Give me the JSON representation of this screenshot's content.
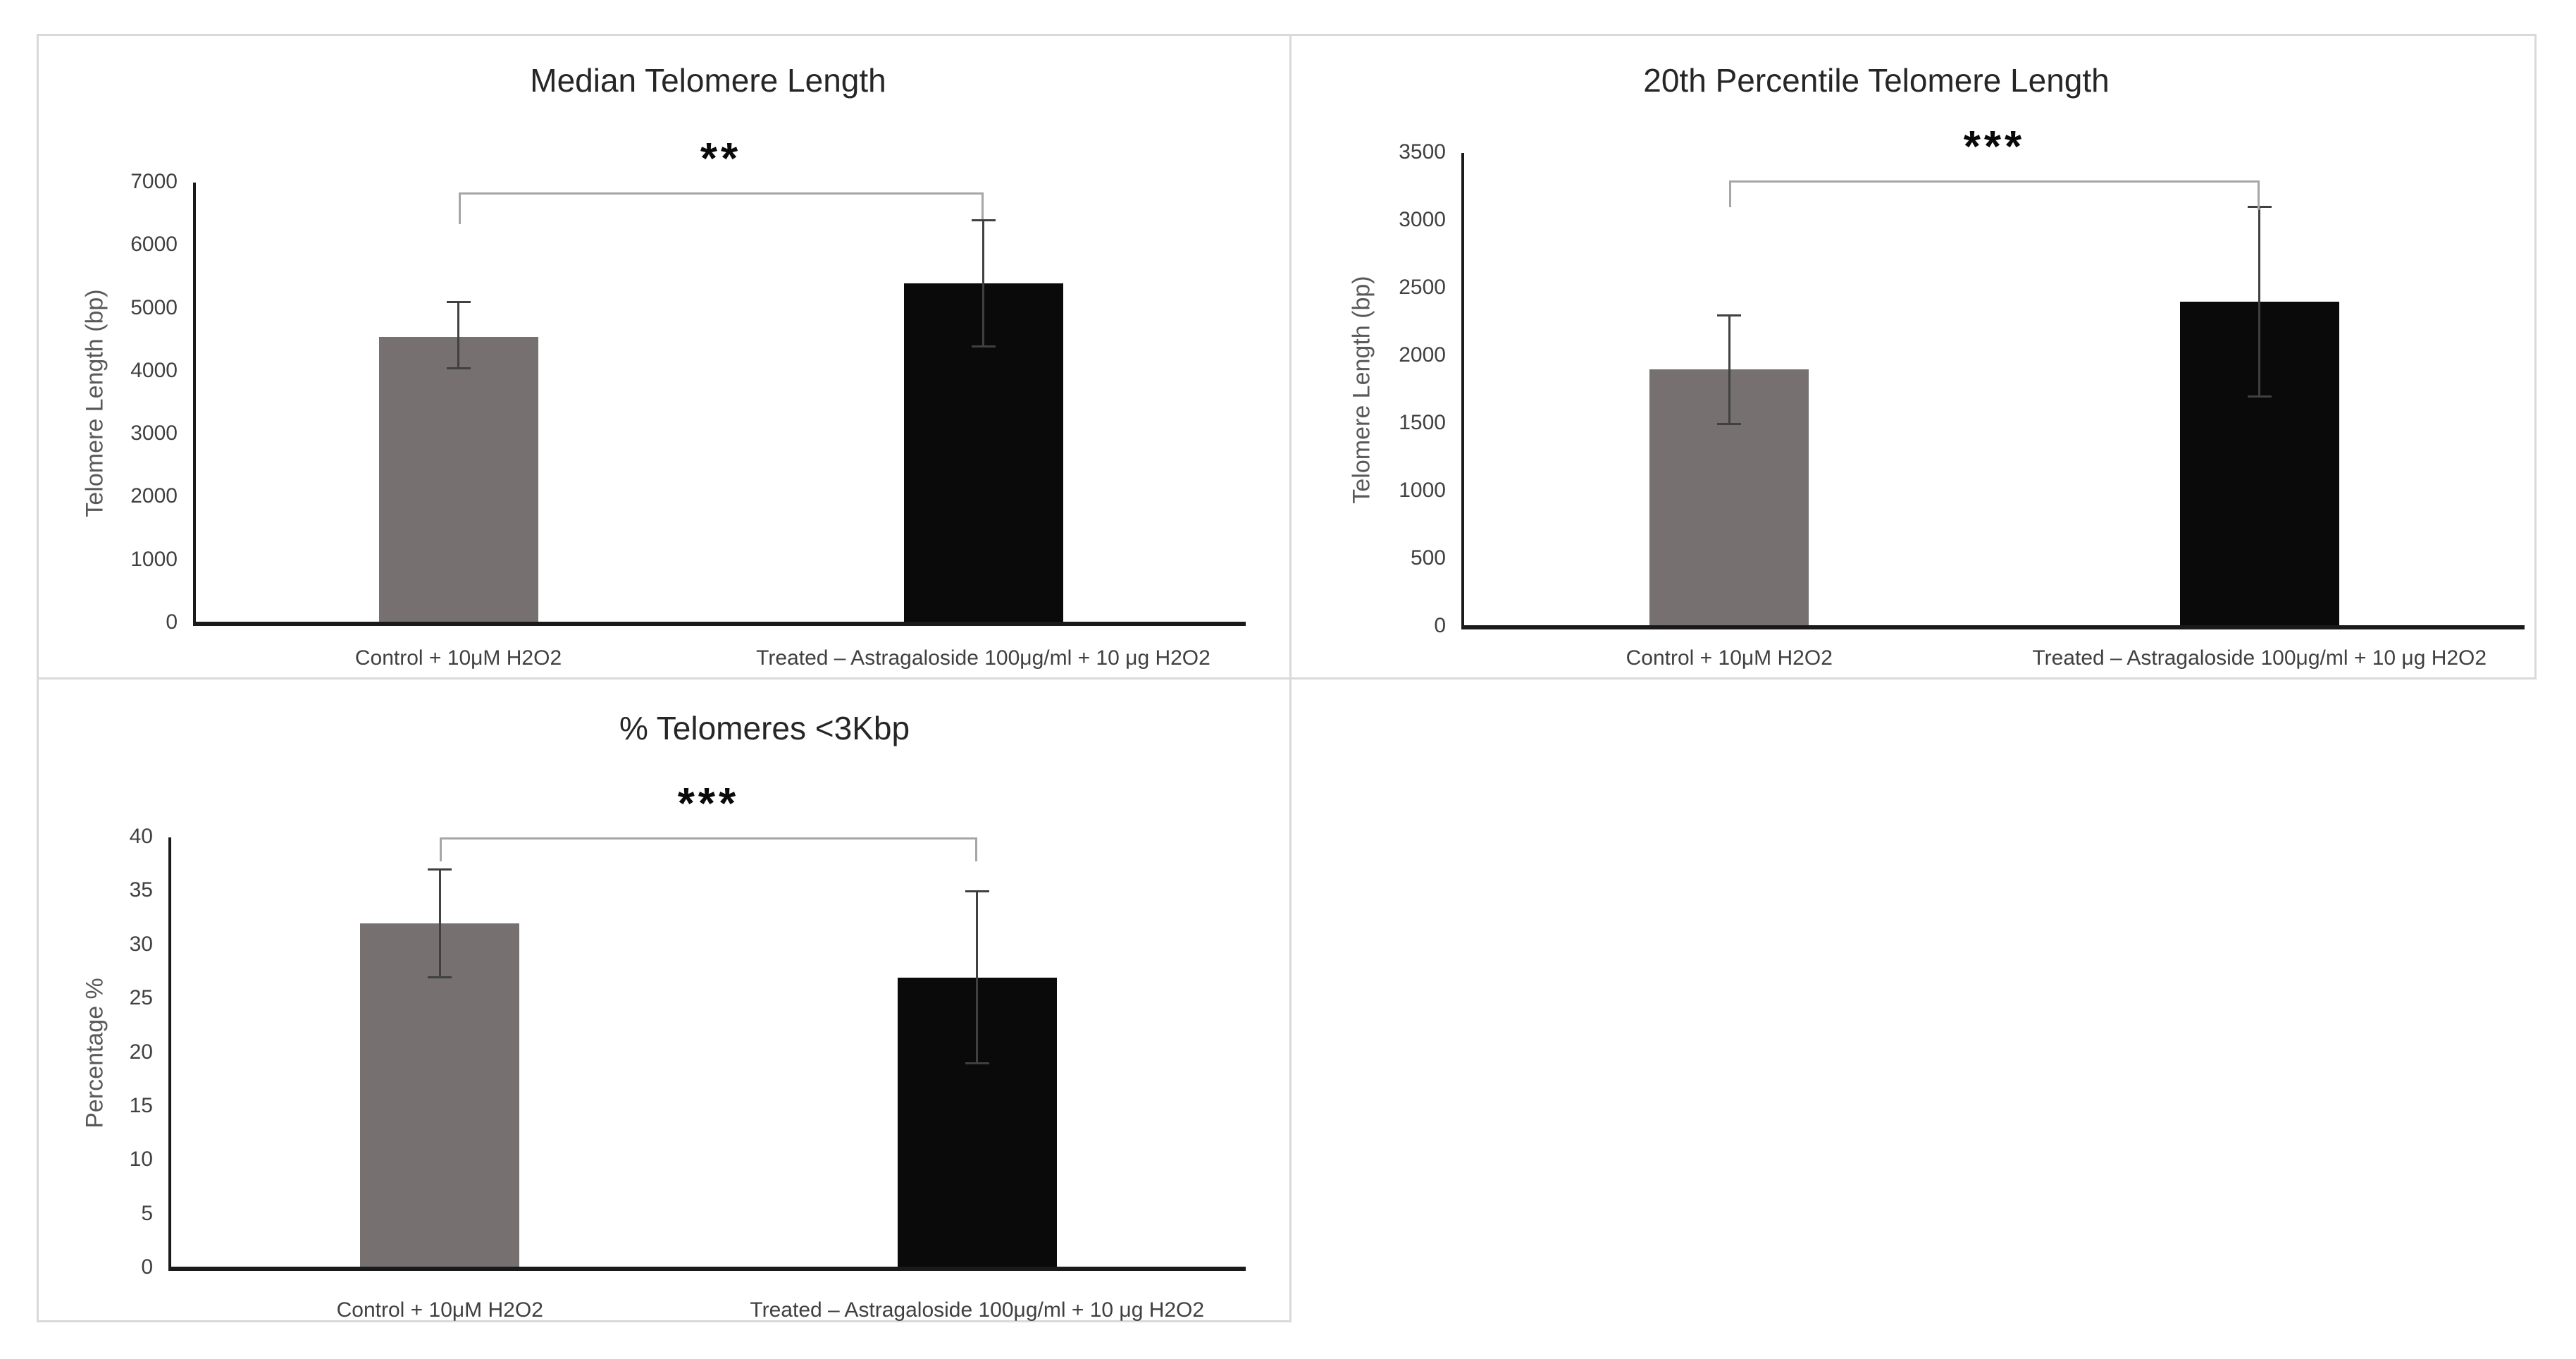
{
  "colors": {
    "bar_gray": "#767170",
    "bar_black": "#0a0a0a",
    "error_bar": "#404040",
    "bracket": "#a6a6a6",
    "axis_line": "#1a1a1a",
    "tick_label": "#404040",
    "axis_title": "#595959",
    "chart_title": "#262626",
    "panel_border": "#d9d9d9",
    "background": "#ffffff"
  },
  "chart_data": [
    {
      "type": "bar",
      "title": "Median Telomere Length",
      "ylabel": "Telomere Length (bp)",
      "xlabel": "",
      "categories": [
        "Control + 10μM H2O2",
        "Treated – Astragaloside 100μg/ml + 10 μg H2O2"
      ],
      "values": [
        4550,
        5400
      ],
      "error_low": [
        4050,
        4400
      ],
      "error_high": [
        5100,
        6400
      ],
      "bar_colors": [
        "#767170",
        "#0a0a0a"
      ],
      "ylim": [
        0,
        7000
      ],
      "ytick_step": 1000,
      "ytick_labels": [
        "0",
        "1000",
        "2000",
        "3000",
        "4000",
        "5000",
        "6000",
        "7000"
      ],
      "significance": "**",
      "grid": false,
      "legend": "none"
    },
    {
      "type": "bar",
      "title": "20th Percentile Telomere Length",
      "ylabel": "Telomere Length (bp)",
      "xlabel": "",
      "categories": [
        "Control + 10μM H2O2",
        "Treated – Astragaloside 100μg/ml + 10 μg H2O2"
      ],
      "values": [
        1900,
        2400
      ],
      "error_low": [
        1500,
        1700
      ],
      "error_high": [
        2300,
        3100
      ],
      "bar_colors": [
        "#767170",
        "#0a0a0a"
      ],
      "ylim": [
        0,
        3500
      ],
      "ytick_step": 500,
      "ytick_labels": [
        "0",
        "500",
        "1000",
        "1500",
        "2000",
        "2500",
        "3000",
        "3500"
      ],
      "significance": "***",
      "grid": false,
      "legend": "none"
    },
    {
      "type": "bar",
      "title": "% Telomeres <3Kbp",
      "ylabel": "Percentage %",
      "xlabel": "",
      "categories": [
        "Control + 10μM H2O2",
        "Treated – Astragaloside 100μg/ml + 10 μg H2O2"
      ],
      "values": [
        32,
        27
      ],
      "error_low": [
        27,
        19
      ],
      "error_high": [
        37,
        35
      ],
      "bar_colors": [
        "#767170",
        "#0a0a0a"
      ],
      "ylim": [
        0,
        40
      ],
      "ytick_step": 5,
      "ytick_labels": [
        "0",
        "5",
        "10",
        "15",
        "20",
        "25",
        "30",
        "35",
        "40"
      ],
      "significance": "***",
      "grid": false,
      "legend": "none"
    }
  ]
}
